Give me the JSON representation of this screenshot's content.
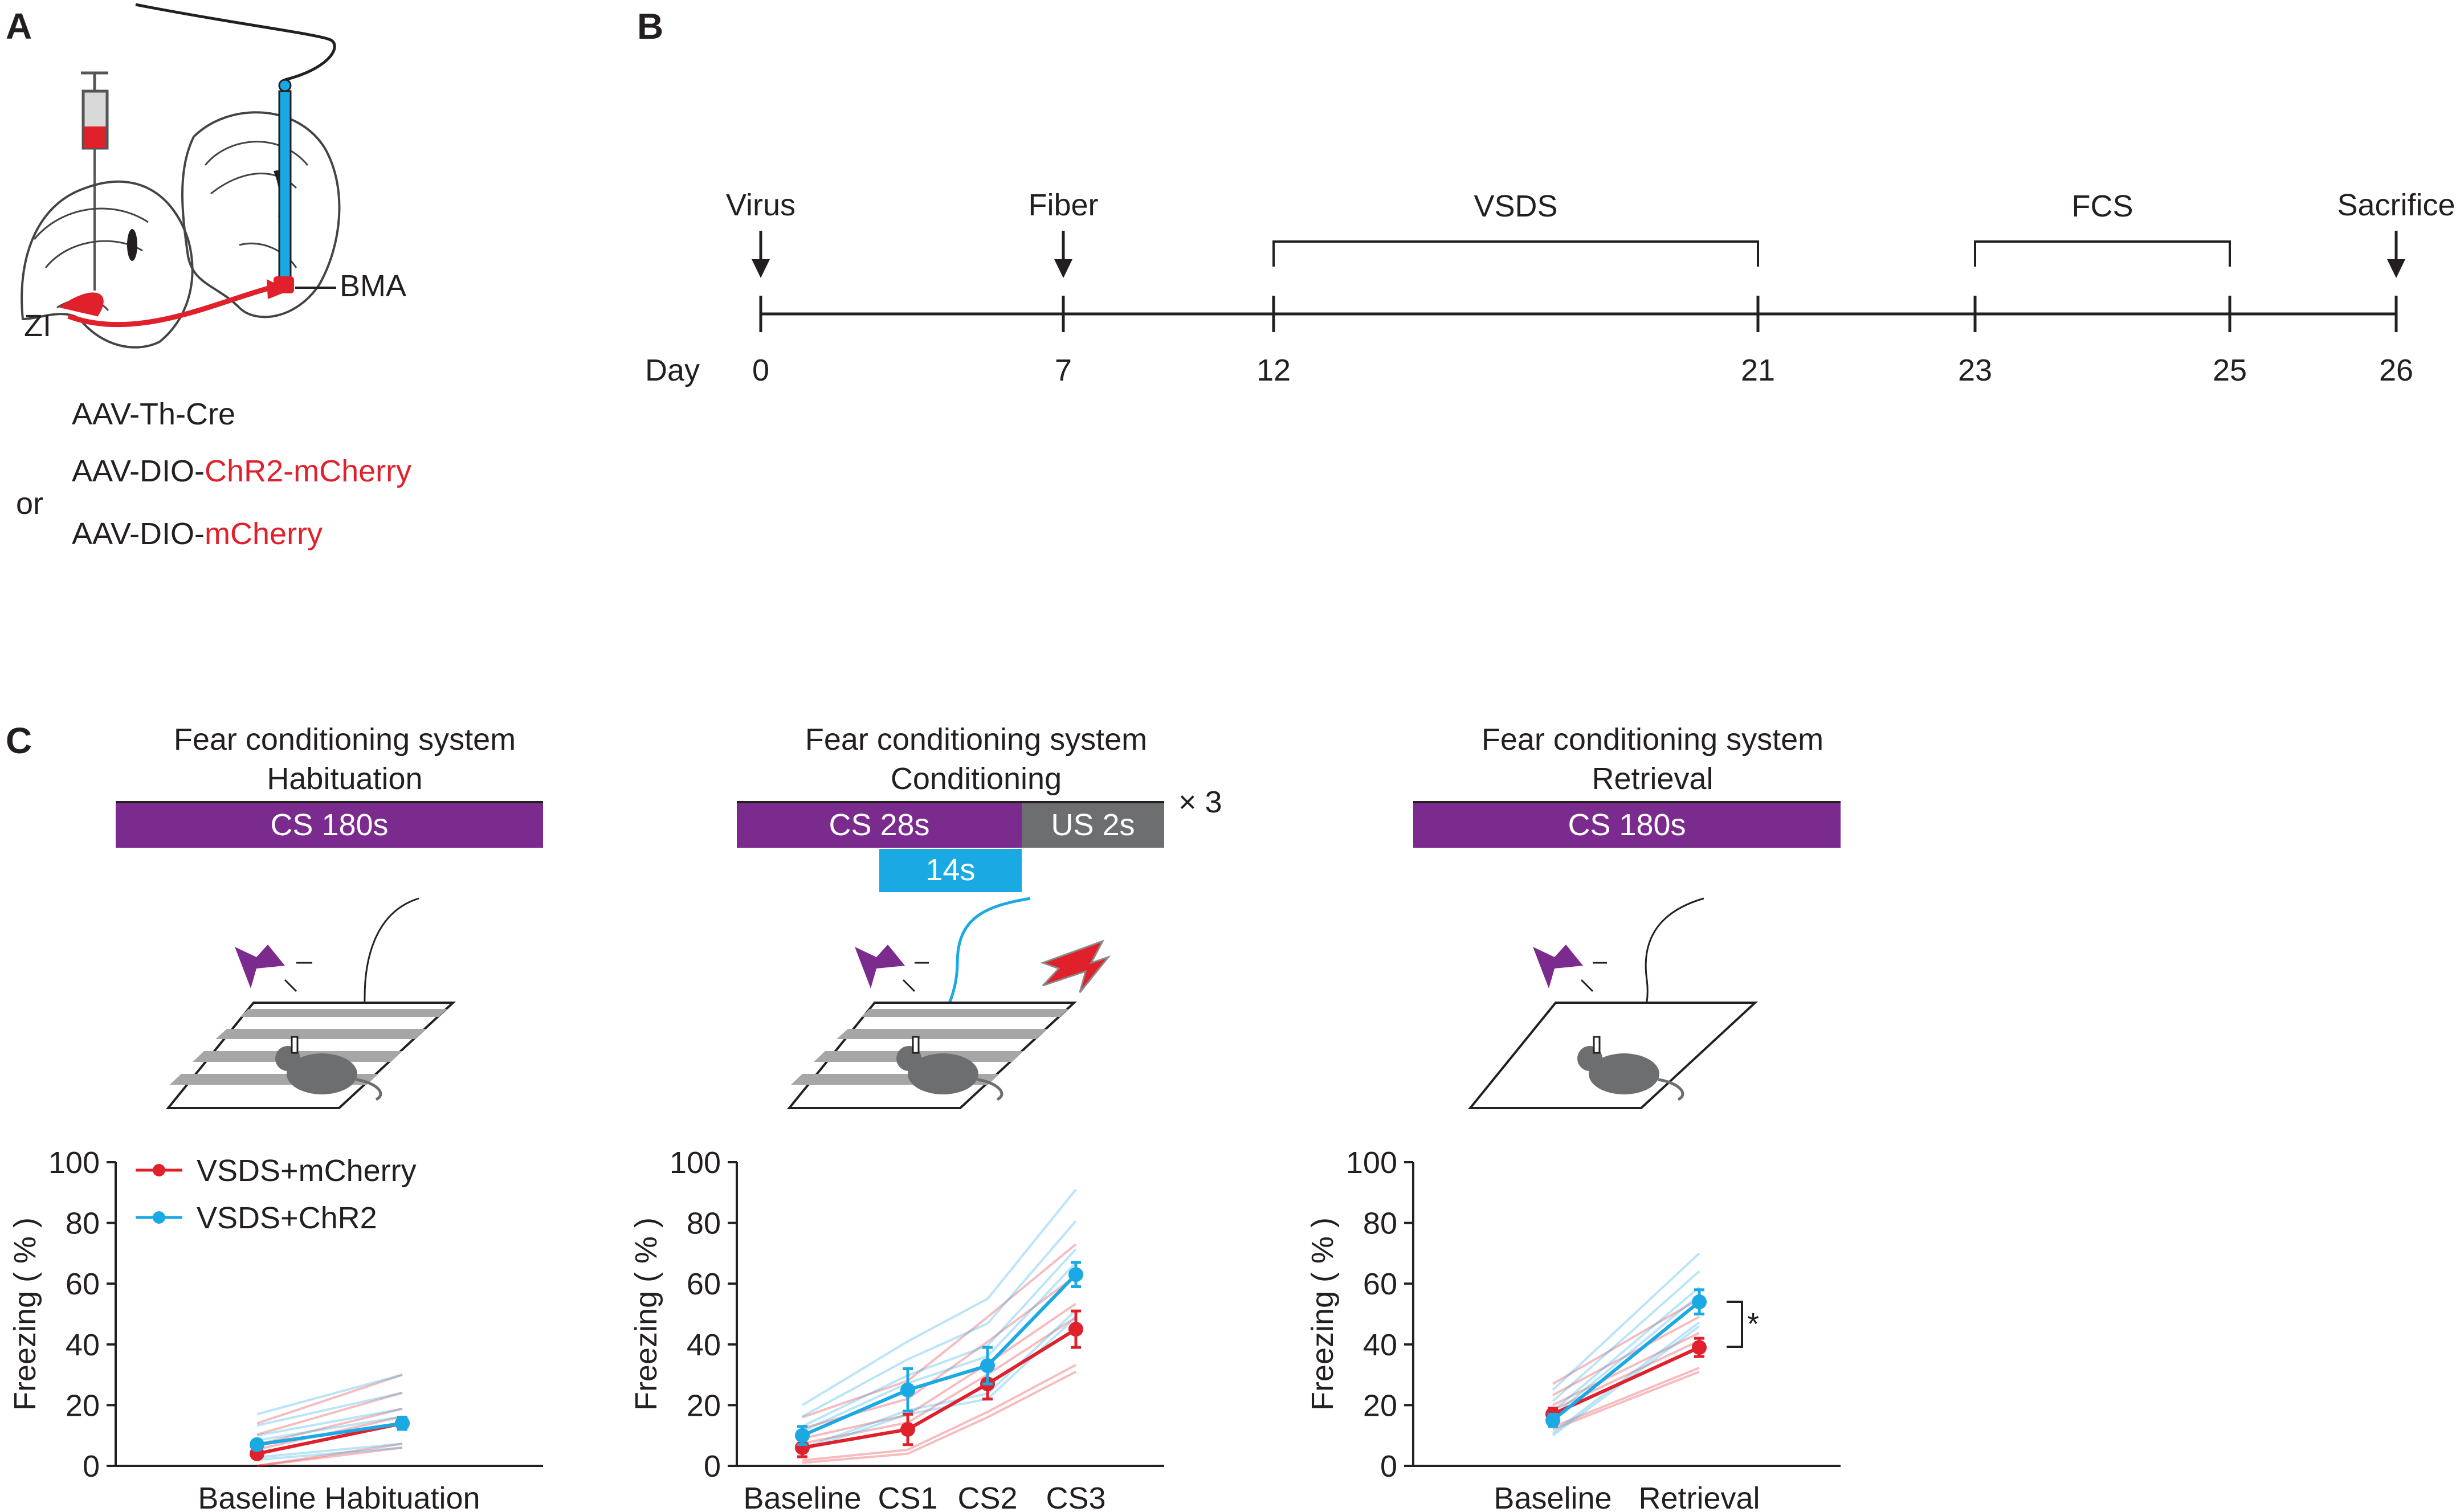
{
  "panels": {
    "a": "A",
    "b": "B",
    "c": "C"
  },
  "panel_a": {
    "region_zi": "ZI",
    "region_bma": "BMA",
    "virus_1": "AAV-Th-Cre",
    "virus_2_prefix": "AAV-DIO-",
    "virus_2_red": "ChR2-mCherry",
    "virus_or": "or",
    "virus_3_prefix": "AAV-DIO-",
    "virus_3_red": "mCherry"
  },
  "panel_b": {
    "day_label": "Day",
    "days": [
      "0",
      "7",
      "12",
      "21",
      "23",
      "25",
      "26"
    ],
    "arrows": [
      "Virus",
      "Fiber",
      "Sacrifice"
    ],
    "brackets": [
      "VSDS",
      "FCS"
    ]
  },
  "panel_c": {
    "titles": [
      {
        "line1": "Fear conditioning system",
        "line2": "Habituation"
      },
      {
        "line1": "Fear conditioning system",
        "line2": "Conditioning"
      },
      {
        "line1": "Fear conditioning system",
        "line2": "Retrieval"
      }
    ],
    "bars": {
      "hab_cs": "CS  180s",
      "cond_cs": "CS  28s",
      "cond_us": "US  2s",
      "cond_light": "14s",
      "repeat": "× 3",
      "ret_cs": "CS  180s"
    },
    "significance": "*"
  },
  "colors": {
    "mcherry": "#e0202b",
    "chr2": "#1ba9e3",
    "cs": "#7b2a8e",
    "us": "#6d6e70",
    "light": "#1ba9e3"
  },
  "chart_data": [
    {
      "type": "line",
      "title": "Habituation",
      "xlabel": "",
      "ylabel": "Freezing ( % )",
      "ylim": [
        0,
        100
      ],
      "yticks": [
        "0",
        "20",
        "40",
        "60",
        "80",
        "100"
      ],
      "categories": [
        "Baseline",
        "Habituation"
      ],
      "legend": "top-left",
      "series": [
        {
          "name": "VSDS+mCherry",
          "values": [
            4,
            14
          ],
          "errors": [
            1,
            2
          ]
        },
        {
          "name": "VSDS+ChR2",
          "values": [
            7,
            14
          ],
          "errors": [
            1,
            2
          ]
        }
      ]
    },
    {
      "type": "line",
      "title": "Conditioning",
      "xlabel": "",
      "ylabel": "Freezing ( % )",
      "ylim": [
        0,
        100
      ],
      "yticks": [
        "0",
        "20",
        "40",
        "60",
        "80",
        "100"
      ],
      "categories": [
        "Baseline",
        "CS1",
        "CS2",
        "CS3"
      ],
      "series": [
        {
          "name": "VSDS+mCherry",
          "values": [
            6,
            12,
            27,
            45
          ],
          "errors": [
            3,
            5,
            5,
            6
          ]
        },
        {
          "name": "VSDS+ChR2",
          "values": [
            10,
            25,
            33,
            63
          ],
          "errors": [
            3,
            7,
            6,
            4
          ]
        }
      ]
    },
    {
      "type": "line",
      "title": "Retrieval",
      "xlabel": "",
      "ylabel": "Freezing ( % )",
      "ylim": [
        0,
        100
      ],
      "yticks": [
        "0",
        "20",
        "40",
        "60",
        "80",
        "100"
      ],
      "categories": [
        "Baseline",
        "Retrieval"
      ],
      "series": [
        {
          "name": "VSDS+mCherry",
          "values": [
            17,
            39
          ],
          "errors": [
            2,
            3
          ]
        },
        {
          "name": "VSDS+ChR2",
          "values": [
            15,
            54
          ],
          "errors": [
            2,
            4
          ]
        }
      ]
    }
  ]
}
